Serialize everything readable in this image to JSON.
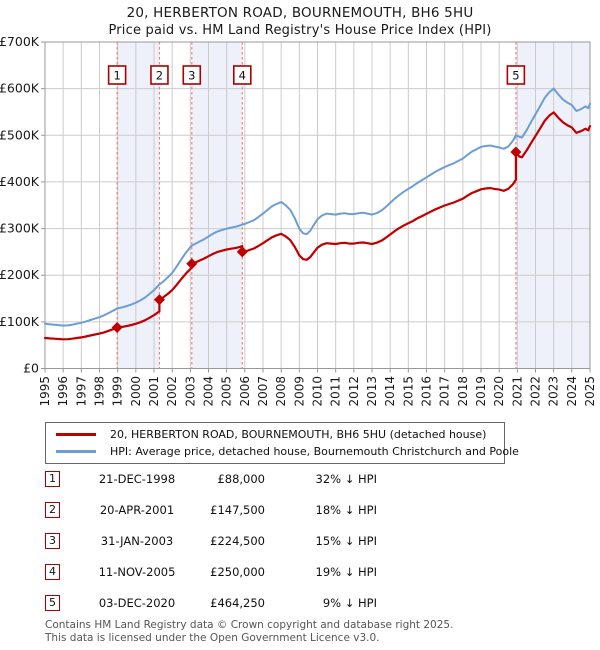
{
  "header": {
    "title_line1": "20, HERBERTON ROAD, BOURNEMOUTH, BH6 5HU",
    "title_line2": "Price paid vs. HM Land Registry's House Price Index (HPI)"
  },
  "chart_data": {
    "type": "line",
    "title": "20, HERBERTON ROAD, BOURNEMOUTH, BH6 5HU",
    "subtitle": "Price paid vs. HM Land Registry's House Price Index (HPI)",
    "xlabel": "",
    "ylabel": "",
    "x_range": [
      1995,
      2025
    ],
    "y_range_gbp": [
      0,
      700000
    ],
    "y_tick_step_gbp": 100000,
    "grid": true,
    "legend_position": "below",
    "y_tick_labels": [
      "£0",
      "£100K",
      "£200K",
      "£300K",
      "£400K",
      "£500K",
      "£600K",
      "£700K"
    ],
    "x_tick_labels": [
      "1995",
      "1996",
      "1997",
      "1998",
      "1999",
      "2000",
      "2001",
      "2002",
      "2003",
      "2004",
      "2005",
      "2006",
      "2007",
      "2008",
      "2009",
      "2010",
      "2011",
      "2012",
      "2013",
      "2014",
      "2015",
      "2016",
      "2017",
      "2018",
      "2019",
      "2020",
      "2021",
      "2022",
      "2023",
      "2024",
      "2025"
    ],
    "series": [
      {
        "name": "HPI: Average price, detached house, Bournemouth Christchurch and Poole",
        "color": "#6d9ed3",
        "points_year_gbp_k": [
          [
            1995.0,
            96
          ],
          [
            1995.25,
            95
          ],
          [
            1995.5,
            94
          ],
          [
            1995.75,
            93
          ],
          [
            1996.0,
            92
          ],
          [
            1996.25,
            92.5
          ],
          [
            1996.5,
            94
          ],
          [
            1996.75,
            96
          ],
          [
            1997.0,
            98
          ],
          [
            1997.25,
            101
          ],
          [
            1997.5,
            104
          ],
          [
            1997.75,
            107
          ],
          [
            1998.0,
            110
          ],
          [
            1998.25,
            114
          ],
          [
            1998.5,
            119
          ],
          [
            1998.75,
            124
          ],
          [
            1999.0,
            129
          ],
          [
            1999.25,
            131
          ],
          [
            1999.5,
            134
          ],
          [
            1999.75,
            137
          ],
          [
            2000.0,
            141
          ],
          [
            2000.25,
            146
          ],
          [
            2000.5,
            152
          ],
          [
            2000.75,
            160
          ],
          [
            2001.0,
            168
          ],
          [
            2001.3,
            180
          ],
          [
            2001.5,
            186
          ],
          [
            2001.75,
            195
          ],
          [
            2002.0,
            205
          ],
          [
            2002.25,
            219
          ],
          [
            2002.5,
            234
          ],
          [
            2002.75,
            248
          ],
          [
            2003.0,
            260
          ],
          [
            2003.1,
            264
          ],
          [
            2003.25,
            267
          ],
          [
            2003.5,
            272
          ],
          [
            2003.75,
            277
          ],
          [
            2004.0,
            283
          ],
          [
            2004.25,
            289
          ],
          [
            2004.5,
            294
          ],
          [
            2004.75,
            297
          ],
          [
            2005.0,
            300
          ],
          [
            2005.25,
            302
          ],
          [
            2005.5,
            304
          ],
          [
            2005.75,
            307
          ],
          [
            2005.9,
            309
          ],
          [
            2006.0,
            310
          ],
          [
            2006.25,
            314
          ],
          [
            2006.5,
            318
          ],
          [
            2006.75,
            325
          ],
          [
            2007.0,
            332
          ],
          [
            2007.25,
            340
          ],
          [
            2007.5,
            348
          ],
          [
            2007.75,
            353
          ],
          [
            2008.0,
            357
          ],
          [
            2008.25,
            350
          ],
          [
            2008.5,
            340
          ],
          [
            2008.75,
            322
          ],
          [
            2009.0,
            300
          ],
          [
            2009.2,
            290
          ],
          [
            2009.4,
            288
          ],
          [
            2009.6,
            295
          ],
          [
            2009.8,
            308
          ],
          [
            2010.0,
            320
          ],
          [
            2010.25,
            328
          ],
          [
            2010.5,
            332
          ],
          [
            2010.75,
            331
          ],
          [
            2011.0,
            330
          ],
          [
            2011.25,
            332
          ],
          [
            2011.5,
            333
          ],
          [
            2011.75,
            331
          ],
          [
            2012.0,
            331
          ],
          [
            2012.25,
            333
          ],
          [
            2012.5,
            334
          ],
          [
            2012.75,
            332
          ],
          [
            2013.0,
            330
          ],
          [
            2013.25,
            333
          ],
          [
            2013.5,
            338
          ],
          [
            2013.75,
            346
          ],
          [
            2014.0,
            355
          ],
          [
            2014.25,
            364
          ],
          [
            2014.5,
            372
          ],
          [
            2014.75,
            379
          ],
          [
            2015.0,
            385
          ],
          [
            2015.25,
            391
          ],
          [
            2015.5,
            398
          ],
          [
            2015.75,
            404
          ],
          [
            2016.0,
            410
          ],
          [
            2016.25,
            416
          ],
          [
            2016.5,
            422
          ],
          [
            2016.75,
            427
          ],
          [
            2017.0,
            432
          ],
          [
            2017.25,
            436
          ],
          [
            2017.5,
            440
          ],
          [
            2017.75,
            445
          ],
          [
            2018.0,
            450
          ],
          [
            2018.25,
            458
          ],
          [
            2018.5,
            465
          ],
          [
            2018.75,
            470
          ],
          [
            2019.0,
            475
          ],
          [
            2019.25,
            477
          ],
          [
            2019.5,
            478
          ],
          [
            2019.75,
            476
          ],
          [
            2020.0,
            474
          ],
          [
            2020.25,
            471
          ],
          [
            2020.5,
            476
          ],
          [
            2020.75,
            488
          ],
          [
            2020.92,
            500
          ],
          [
            2021.1,
            497
          ],
          [
            2021.25,
            495
          ],
          [
            2021.5,
            510
          ],
          [
            2021.75,
            528
          ],
          [
            2022.0,
            545
          ],
          [
            2022.25,
            562
          ],
          [
            2022.5,
            580
          ],
          [
            2022.75,
            592
          ],
          [
            2023.0,
            600
          ],
          [
            2023.25,
            588
          ],
          [
            2023.5,
            577
          ],
          [
            2023.75,
            570
          ],
          [
            2024.0,
            565
          ],
          [
            2024.25,
            552
          ],
          [
            2024.5,
            556
          ],
          [
            2024.75,
            562
          ],
          [
            2024.9,
            558
          ],
          [
            2025.0,
            568
          ]
        ]
      },
      {
        "name": "20, HERBERTON ROAD, BOURNEMOUTH, BH6 5HU (detached house)",
        "color": "#c00000",
        "points_year_gbp_k": [
          [
            1995.0,
            65.3
          ],
          [
            1995.25,
            64.6
          ],
          [
            1995.5,
            63.9
          ],
          [
            1995.75,
            63.2
          ],
          [
            1996.0,
            62.6
          ],
          [
            1996.25,
            62.9
          ],
          [
            1996.5,
            63.9
          ],
          [
            1996.75,
            65.3
          ],
          [
            1997.0,
            66.6
          ],
          [
            1997.25,
            68.7
          ],
          [
            1997.5,
            70.7
          ],
          [
            1997.75,
            72.8
          ],
          [
            1998.0,
            74.8
          ],
          [
            1998.25,
            77.5
          ],
          [
            1998.5,
            80.9
          ],
          [
            1998.75,
            84.3
          ],
          [
            1998.97,
            88.0
          ],
          [
            1999.25,
            89.1
          ],
          [
            1999.5,
            91.1
          ],
          [
            1999.75,
            93.2
          ],
          [
            2000.0,
            95.9
          ],
          [
            2000.25,
            99.3
          ],
          [
            2000.5,
            103.4
          ],
          [
            2000.75,
            108.8
          ],
          [
            2001.0,
            114.2
          ],
          [
            2001.3,
            122.4
          ],
          [
            2001.3,
            147.5
          ],
          [
            2001.5,
            152.4
          ],
          [
            2001.75,
            159.8
          ],
          [
            2002.0,
            168.0
          ],
          [
            2002.25,
            179.5
          ],
          [
            2002.5,
            191.8
          ],
          [
            2002.75,
            203.2
          ],
          [
            2003.0,
            213.1
          ],
          [
            2003.08,
            216.4
          ],
          [
            2003.08,
            224.5
          ],
          [
            2003.25,
            227.0
          ],
          [
            2003.5,
            231.3
          ],
          [
            2003.75,
            235.6
          ],
          [
            2004.0,
            240.7
          ],
          [
            2004.25,
            245.8
          ],
          [
            2004.5,
            250.0
          ],
          [
            2004.75,
            252.6
          ],
          [
            2005.0,
            255.1
          ],
          [
            2005.25,
            256.8
          ],
          [
            2005.5,
            258.5
          ],
          [
            2005.75,
            261.0
          ],
          [
            2005.86,
            262.4
          ],
          [
            2005.86,
            250.0
          ],
          [
            2006.0,
            250.8
          ],
          [
            2006.25,
            254.0
          ],
          [
            2006.5,
            257.3
          ],
          [
            2006.75,
            262.9
          ],
          [
            2007.0,
            268.6
          ],
          [
            2007.25,
            275.1
          ],
          [
            2007.5,
            281.5
          ],
          [
            2007.75,
            285.6
          ],
          [
            2008.0,
            288.8
          ],
          [
            2008.25,
            283.2
          ],
          [
            2008.5,
            275.1
          ],
          [
            2008.75,
            260.5
          ],
          [
            2009.0,
            242.7
          ],
          [
            2009.2,
            234.6
          ],
          [
            2009.4,
            233.0
          ],
          [
            2009.6,
            238.7
          ],
          [
            2009.8,
            249.2
          ],
          [
            2010.0,
            258.9
          ],
          [
            2010.25,
            265.4
          ],
          [
            2010.5,
            268.6
          ],
          [
            2010.75,
            267.8
          ],
          [
            2011.0,
            267.0
          ],
          [
            2011.25,
            268.6
          ],
          [
            2011.5,
            269.4
          ],
          [
            2011.75,
            267.8
          ],
          [
            2012.0,
            267.8
          ],
          [
            2012.25,
            269.4
          ],
          [
            2012.5,
            270.2
          ],
          [
            2012.75,
            268.6
          ],
          [
            2013.0,
            267.0
          ],
          [
            2013.25,
            269.4
          ],
          [
            2013.5,
            273.5
          ],
          [
            2013.75,
            279.9
          ],
          [
            2014.0,
            287.2
          ],
          [
            2014.25,
            294.5
          ],
          [
            2014.5,
            301.0
          ],
          [
            2014.75,
            306.6
          ],
          [
            2015.0,
            311.5
          ],
          [
            2015.25,
            316.3
          ],
          [
            2015.5,
            322.0
          ],
          [
            2015.75,
            326.8
          ],
          [
            2016.0,
            331.7
          ],
          [
            2016.25,
            336.5
          ],
          [
            2016.5,
            341.4
          ],
          [
            2016.75,
            345.4
          ],
          [
            2017.0,
            349.5
          ],
          [
            2017.25,
            352.7
          ],
          [
            2017.5,
            356.0
          ],
          [
            2017.75,
            360.0
          ],
          [
            2018.0,
            364.1
          ],
          [
            2018.25,
            370.5
          ],
          [
            2018.5,
            376.2
          ],
          [
            2018.75,
            380.2
          ],
          [
            2019.0,
            384.3
          ],
          [
            2019.25,
            385.9
          ],
          [
            2019.5,
            386.7
          ],
          [
            2019.75,
            385.1
          ],
          [
            2020.0,
            383.5
          ],
          [
            2020.25,
            381.0
          ],
          [
            2020.5,
            385.1
          ],
          [
            2020.75,
            394.8
          ],
          [
            2020.92,
            404.5
          ],
          [
            2020.92,
            464.25
          ],
          [
            2021.1,
            454.8
          ],
          [
            2021.25,
            452.9
          ],
          [
            2021.5,
            466.7
          ],
          [
            2021.75,
            483.1
          ],
          [
            2022.0,
            498.7
          ],
          [
            2022.25,
            514.2
          ],
          [
            2022.5,
            530.7
          ],
          [
            2022.75,
            541.7
          ],
          [
            2023.0,
            549.0
          ],
          [
            2023.25,
            538.0
          ],
          [
            2023.5,
            528.0
          ],
          [
            2023.75,
            521.6
          ],
          [
            2024.0,
            517.0
          ],
          [
            2024.25,
            505.1
          ],
          [
            2024.5,
            508.7
          ],
          [
            2024.75,
            514.2
          ],
          [
            2024.9,
            510.6
          ],
          [
            2025.0,
            519.7
          ]
        ]
      }
    ],
    "sale_markers": [
      {
        "label": "1",
        "year": 1998.97,
        "price_gbp_k": 88.0
      },
      {
        "label": "2",
        "year": 2001.3,
        "price_gbp_k": 147.5
      },
      {
        "label": "3",
        "year": 2003.08,
        "price_gbp_k": 224.5
      },
      {
        "label": "4",
        "year": 2005.86,
        "price_gbp_k": 250.0
      },
      {
        "label": "5",
        "year": 2020.92,
        "price_gbp_k": 464.25
      }
    ],
    "ownership_bands_years": [
      [
        1998.97,
        2001.3
      ],
      [
        2003.08,
        2005.86
      ],
      [
        2020.92,
        2025.0
      ]
    ],
    "colors": {
      "band": "#eef1fa",
      "grid": "#cccccc",
      "border": "#999999",
      "dashed": "#f28080",
      "marker_box_border": "#aa0000",
      "diamond": "#c00000",
      "axis_text": "#1a1a1a"
    }
  },
  "legend": {
    "items": [
      {
        "label": "20, HERBERTON ROAD, BOURNEMOUTH, BH6 5HU (detached house)",
        "color": "#c00000"
      },
      {
        "label": "HPI: Average price, detached house, Bournemouth Christchurch and Poole",
        "color": "#6d9ed3"
      }
    ]
  },
  "sales_table": {
    "rows": [
      {
        "num": "1",
        "date": "21-DEC-1998",
        "price": "£88,000",
        "vs_hpi": "32% ↓ HPI"
      },
      {
        "num": "2",
        "date": "20-APR-2001",
        "price": "£147,500",
        "vs_hpi": "18% ↓ HPI"
      },
      {
        "num": "3",
        "date": "31-JAN-2003",
        "price": "£224,500",
        "vs_hpi": "15% ↓ HPI"
      },
      {
        "num": "4",
        "date": "11-NOV-2005",
        "price": "£250,000",
        "vs_hpi": "19% ↓ HPI"
      },
      {
        "num": "5",
        "date": "03-DEC-2020",
        "price": "£464,250",
        "vs_hpi": "9% ↓ HPI"
      }
    ]
  },
  "footer": {
    "line1": "Contains HM Land Registry data © Crown copyright and database right 2025.",
    "line2": "This data is licensed under the Open Government Licence v3.0."
  }
}
